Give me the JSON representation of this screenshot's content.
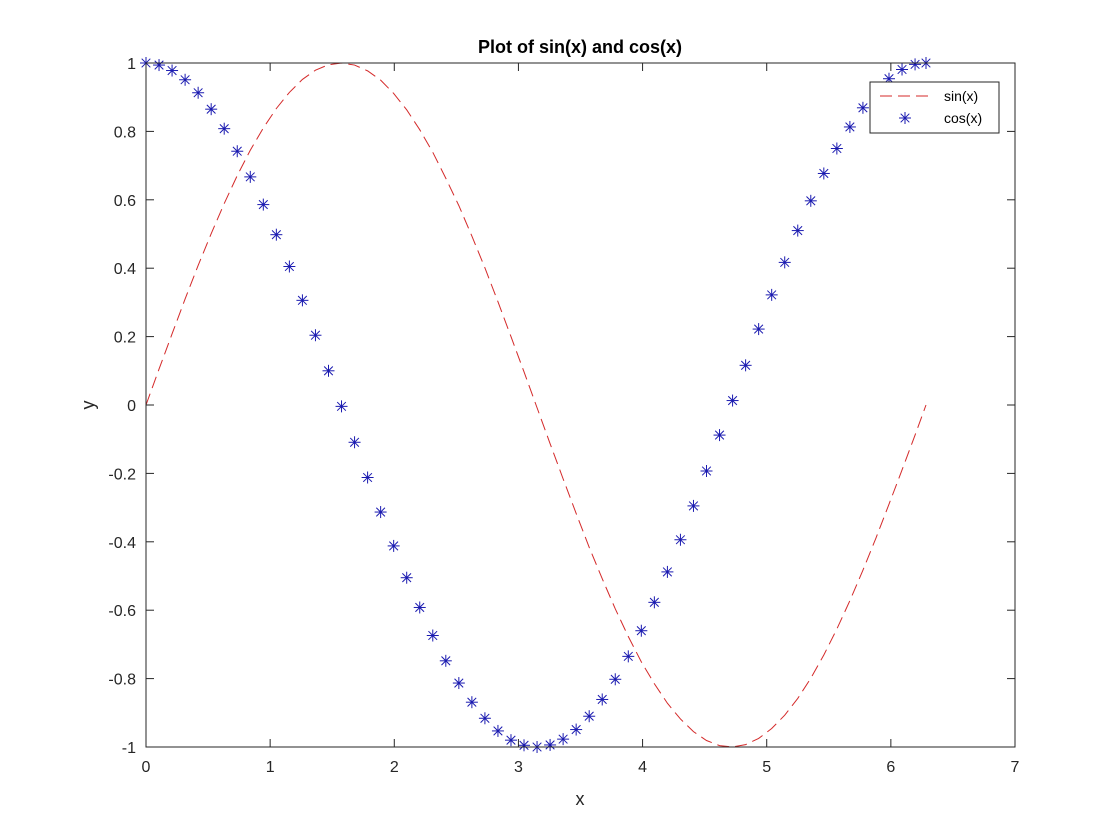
{
  "chart_data": {
    "type": "line",
    "title": "Plot of sin(x) and cos(x)",
    "xlabel": "x",
    "ylabel": "y",
    "xlim": [
      0,
      7
    ],
    "ylim": [
      -1,
      1
    ],
    "xticks": [
      0,
      1,
      2,
      3,
      4,
      5,
      6,
      7
    ],
    "xtick_labels": [
      "0",
      "1",
      "2",
      "3",
      "4",
      "5",
      "6",
      "7"
    ],
    "yticks": [
      -1,
      -0.8,
      -0.6,
      -0.4,
      -0.2,
      0,
      0.2,
      0.4,
      0.6,
      0.8,
      1
    ],
    "ytick_labels": [
      "-1",
      "-0.8",
      "-0.6",
      "-0.4",
      "-0.2",
      "0",
      "0.2",
      "0.4",
      "0.6",
      "0.8",
      "1"
    ],
    "grid": false,
    "legend_position": "top-right",
    "x": [
      0,
      0.105,
      0.21,
      0.315,
      0.42,
      0.525,
      0.63,
      0.735,
      0.84,
      0.945,
      1.05,
      1.155,
      1.26,
      1.365,
      1.47,
      1.575,
      1.68,
      1.785,
      1.89,
      1.995,
      2.1,
      2.205,
      2.31,
      2.415,
      2.52,
      2.625,
      2.73,
      2.835,
      2.94,
      3.045,
      3.15,
      3.255,
      3.36,
      3.465,
      3.57,
      3.675,
      3.78,
      3.885,
      3.99,
      4.095,
      4.2,
      4.305,
      4.41,
      4.515,
      4.62,
      4.725,
      4.83,
      4.935,
      5.04,
      5.145,
      5.25,
      5.355,
      5.46,
      5.565,
      5.67,
      5.775,
      5.88,
      5.985,
      6.09,
      6.195,
      6.283
    ],
    "series": [
      {
        "name": "sin(x)",
        "style": "dashed",
        "color": "#d42a2a",
        "values": [
          0,
          0.105,
          0.208,
          0.31,
          0.408,
          0.501,
          0.589,
          0.671,
          0.745,
          0.81,
          0.867,
          0.914,
          0.952,
          0.979,
          0.995,
          1.0,
          0.994,
          0.977,
          0.95,
          0.911,
          0.863,
          0.805,
          0.739,
          0.663,
          0.583,
          0.494,
          0.401,
          0.302,
          0.2,
          0.097,
          -0.008,
          -0.113,
          -0.216,
          -0.317,
          -0.416,
          -0.508,
          -0.596,
          -0.677,
          -0.751,
          -0.815,
          -0.872,
          -0.918,
          -0.955,
          -0.981,
          -0.996,
          -1.0,
          -0.993,
          -0.975,
          -0.946,
          -0.907,
          -0.858,
          -0.799,
          -0.731,
          -0.655,
          -0.572,
          -0.483,
          -0.389,
          -0.29,
          -0.19,
          -0.088,
          0
        ]
      },
      {
        "name": "cos(x)",
        "style": "asterisk markers",
        "color": "#1a1ab0",
        "values": [
          1.0,
          0.994,
          0.978,
          0.951,
          0.913,
          0.865,
          0.808,
          0.742,
          0.667,
          0.586,
          0.498,
          0.405,
          0.306,
          0.204,
          0.1,
          -0.004,
          -0.109,
          -0.212,
          -0.313,
          -0.412,
          -0.505,
          -0.592,
          -0.674,
          -0.748,
          -0.813,
          -0.869,
          -0.916,
          -0.953,
          -0.98,
          -0.995,
          -1.0,
          -0.994,
          -0.977,
          -0.949,
          -0.91,
          -0.861,
          -0.802,
          -0.735,
          -0.66,
          -0.577,
          -0.488,
          -0.394,
          -0.295,
          -0.193,
          -0.088,
          0.013,
          0.116,
          0.222,
          0.322,
          0.417,
          0.51,
          0.597,
          0.677,
          0.75,
          0.813,
          0.869,
          0.917,
          0.954,
          0.981,
          0.996,
          1.0
        ]
      }
    ]
  }
}
